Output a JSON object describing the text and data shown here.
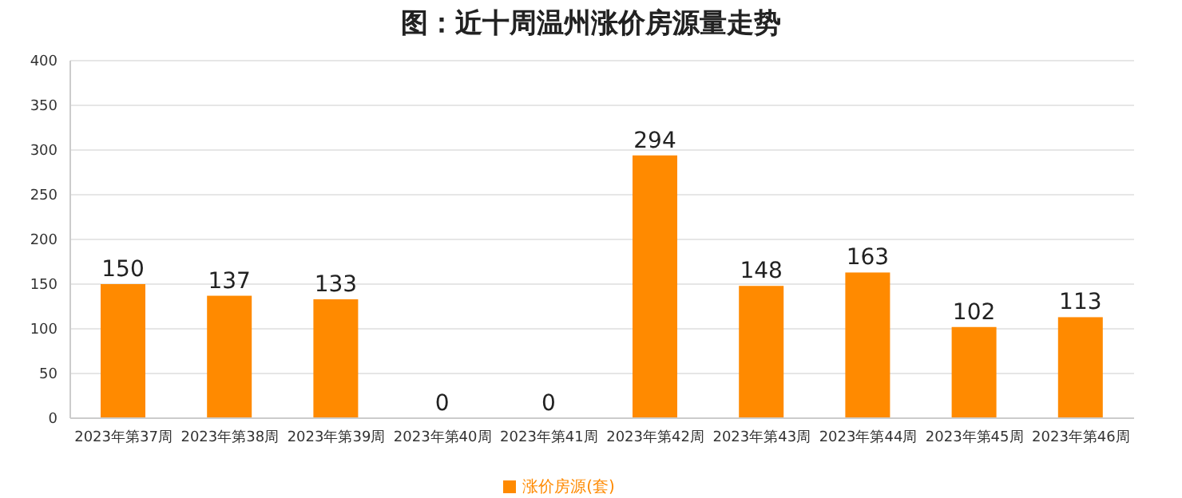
{
  "chart_data": {
    "type": "bar",
    "title": "图：近十周温州涨价房源量走势",
    "categories": [
      "2023年第37周",
      "2023年第38周",
      "2023年第39周",
      "2023年第40周",
      "2023年第41周",
      "2023年第42周",
      "2023年第43周",
      "2023年第44周",
      "2023年第45周",
      "2023年第46周"
    ],
    "series": [
      {
        "name": "涨价房源(套)",
        "color": "#ff8a00",
        "values": [
          150,
          137,
          133,
          0,
          0,
          294,
          148,
          163,
          102,
          113
        ]
      }
    ],
    "ylim": [
      0,
      400
    ],
    "yticks": [
      0,
      50,
      100,
      150,
      200,
      250,
      300,
      350,
      400
    ],
    "grid": "y",
    "legend": "bottom",
    "data_labels": true
  }
}
